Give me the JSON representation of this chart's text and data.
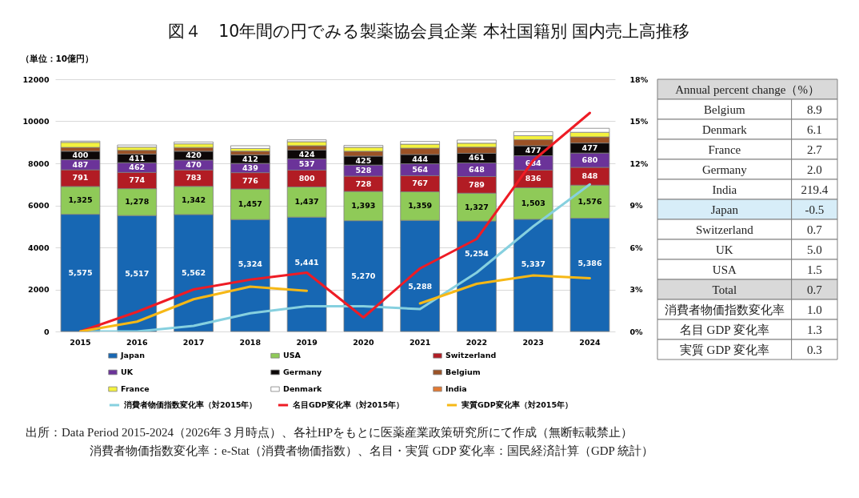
{
  "chart_data": [
    {
      "type": "bar",
      "stacked": true,
      "title": "図４　10年間の円でみる製薬協会員企業 本社国籍別 国内売上高推移",
      "ylabel": "（単位：10億円）",
      "categories": [
        "2015",
        "2016",
        "2017",
        "2018",
        "2019",
        "2020",
        "2021",
        "2022",
        "2023",
        "2024"
      ],
      "ylim": [
        0,
        12000
      ],
      "yticks": [
        0,
        2000,
        4000,
        6000,
        8000,
        10000,
        12000
      ],
      "y2lim": [
        0,
        18
      ],
      "y2ticks": [
        {
          "value": 0,
          "label": "0%"
        },
        {
          "value": 3,
          "label": "3%"
        },
        {
          "value": 6,
          "label": "6%"
        },
        {
          "value": 9,
          "label": "9%"
        },
        {
          "value": 12,
          "label": "12%"
        },
        {
          "value": 15,
          "label": "15%"
        },
        {
          "value": 18,
          "label": "18%"
        }
      ],
      "grid": "y",
      "legend": "bottom",
      "marker": "none",
      "line_style": "solid",
      "series": [
        {
          "name": "Japan",
          "color": "#1767b3",
          "values": [
            5575,
            5517,
            5562,
            5324,
            5441,
            5270,
            5288,
            5254,
            5337,
            5386
          ],
          "value_labels": [
            "5,575",
            "5,517",
            "5,562",
            "5,324",
            "5,441",
            "5,270",
            "5,288",
            "5,254",
            "5,337",
            "5,386"
          ]
        },
        {
          "name": "USA",
          "color": "#8fca58",
          "values": [
            1325,
            1278,
            1342,
            1457,
            1437,
            1393,
            1359,
            1327,
            1503,
            1576
          ],
          "value_labels": [
            "1,325",
            "1,278",
            "1,342",
            "1,457",
            "1,437",
            "1,393",
            "1,359",
            "1,327",
            "1,503",
            "1,576"
          ]
        },
        {
          "name": "Switzerland",
          "color": "#b21c24",
          "values": [
            791,
            774,
            783,
            776,
            800,
            728,
            767,
            789,
            836,
            848
          ],
          "value_labels": [
            "791",
            "774",
            "783",
            "776",
            "800",
            "728",
            "767",
            "789",
            "836",
            "848"
          ]
        },
        {
          "name": "UK",
          "color": "#6b3399",
          "values": [
            487,
            462,
            470,
            439,
            537,
            528,
            564,
            648,
            684,
            680
          ],
          "value_labels": [
            "487",
            "462",
            "470",
            "439",
            "537",
            "528",
            "564",
            "648",
            "684",
            "680"
          ]
        },
        {
          "name": "Germany",
          "color": "#0d0808",
          "values": [
            400,
            411,
            420,
            412,
            424,
            425,
            444,
            461,
            477,
            477
          ],
          "value_labels": [
            "400",
            "411",
            "420",
            "412",
            "424",
            "425",
            "444",
            "461",
            "477",
            "477"
          ]
        },
        {
          "name": "Belgium",
          "color": "#9b5226",
          "values": [
            180,
            180,
            180,
            170,
            200,
            230,
            300,
            290,
            290,
            290
          ]
        },
        {
          "name": "France",
          "color": "#f4f23e",
          "values": [
            240,
            150,
            170,
            130,
            190,
            190,
            190,
            190,
            190,
            220
          ]
        },
        {
          "name": "Denmark",
          "color": "#ffffff",
          "values": [
            60,
            100,
            90,
            130,
            90,
            90,
            130,
            150,
            190,
            190
          ]
        },
        {
          "name": "India",
          "color": "#e27a33",
          "values": [
            null,
            null,
            null,
            null,
            null,
            null,
            null,
            null,
            null,
            null
          ]
        },
        {
          "name": "消費者物価指数変化率（対2015年）",
          "type": "line",
          "axis": "y2",
          "color": "#86d0df",
          "values": [
            0.0,
            0.0,
            0.4,
            1.3,
            1.8,
            1.8,
            1.6,
            4.2,
            7.5,
            10.5
          ]
        },
        {
          "name": "名目GDP変化率（対2015年）",
          "type": "line",
          "axis": "y2",
          "color": "#ee1c25",
          "values": [
            0.0,
            1.4,
            3.0,
            3.7,
            4.2,
            1.0,
            4.5,
            6.6,
            12.2,
            15.6
          ]
        },
        {
          "name": "実質GDP変化率（対2015年）",
          "type": "line",
          "axis": "y2",
          "color": "#f6b816",
          "values": [
            0.0,
            0.7,
            2.3,
            3.2,
            2.9,
            null,
            2.0,
            3.4,
            4.0,
            3.8
          ]
        }
      ],
      "annotations": [
        "出所：Data Period 2015-2024（2026年３月時点）、各社HPをもとに医薬産業政策研究所にて作成（無断転載禁止）",
        "消費者物価指数変化率：e-Stat（消費者物価指数）、名目・実質 GDP 変化率：国民経済計算（GDP 統計）"
      ]
    },
    {
      "type": "other",
      "title": "Annual percent change（%）",
      "categories": [
        "Belgium",
        "Denmark",
        "France",
        "Germany",
        "India",
        "Japan",
        "Switzerland",
        "UK",
        "USA",
        "Total",
        "消費者物価指数変化率",
        "名目 GDP 変化率",
        "実質 GDP 変化率"
      ],
      "value_labels": [
        "8.9",
        "6.1",
        "2.7",
        "2.0",
        "219.4",
        "-0.5",
        "0.7",
        "5.0",
        "1.5",
        "0.7",
        "1.0",
        "1.3",
        "0.3"
      ],
      "colors": [
        "#ffffff",
        "#ffffff",
        "#ffffff",
        "#ffffff",
        "#ffffff",
        "#d7edf8",
        "#ffffff",
        "#ffffff",
        "#ffffff",
        "#d9d9d9",
        "#ffffff",
        "#ffffff",
        "#ffffff"
      ]
    }
  ]
}
